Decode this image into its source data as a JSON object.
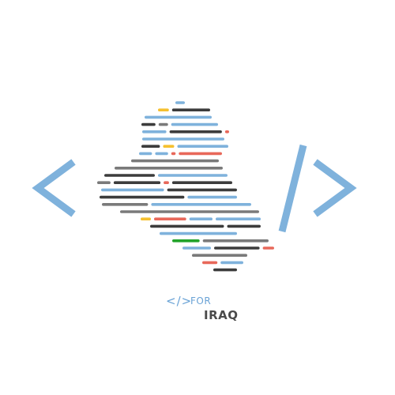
{
  "brand": {
    "code_glyph": "</>",
    "for_text": "FOR",
    "name_text": "IRAQ"
  },
  "icons": {
    "left_bracket": "angle-bracket-left-icon",
    "slash": "forward-slash-icon",
    "right_bracket": "angle-bracket-right-icon"
  },
  "colors": {
    "blue": "#7fb2dc",
    "dark": "#3c3c3c",
    "gray": "#7a7a7a",
    "yellow": "#f5c030",
    "red": "#e8685a",
    "green": "#22a32a",
    "bracket": "#7fb2dc"
  },
  "code_lines": [
    [
      [
        "blue",
        0.2
      ]
    ],
    [
      [
        "yellow",
        0.1
      ],
      [
        "dark",
        0.35
      ]
    ],
    [
      [
        "blue",
        0.55
      ]
    ],
    [
      [
        "dark",
        0.15
      ],
      [
        "gray",
        0.1
      ],
      [
        "blue",
        0.5
      ]
    ],
    [
      [
        "blue",
        0.3
      ],
      [
        "dark",
        0.65
      ],
      [
        "red",
        0.05
      ]
    ],
    [
      [
        "blue",
        0.85
      ]
    ],
    [
      [
        "dark",
        0.2
      ],
      [
        "yellow",
        0.12
      ],
      [
        "blue",
        0.55
      ]
    ],
    [
      [
        "blue",
        0.15
      ],
      [
        "blue",
        0.15
      ],
      [
        "red",
        0.05
      ],
      [
        "red",
        0.5
      ]
    ],
    [
      [
        "gray",
        0.9
      ]
    ],
    [
      [
        "gray",
        0.95
      ]
    ],
    [
      [
        "dark",
        0.4
      ],
      [
        "blue",
        0.55
      ]
    ],
    [
      [
        "gray",
        0.1
      ],
      [
        "dark",
        0.35
      ],
      [
        "red",
        0.04
      ],
      [
        "dark",
        0.45
      ]
    ],
    [
      [
        "blue",
        0.45
      ],
      [
        "dark",
        0.5
      ]
    ],
    [
      [
        "dark",
        0.6
      ],
      [
        "blue",
        0.35
      ]
    ],
    [
      [
        "gray",
        0.3
      ],
      [
        "blue",
        0.65
      ]
    ],
    [
      [
        "gray",
        0.95
      ]
    ],
    [
      [
        "yellow",
        0.08
      ],
      [
        "red",
        0.25
      ],
      [
        "blue",
        0.18
      ],
      [
        "blue",
        0.35
      ]
    ],
    [
      [
        "dark",
        0.55
      ],
      [
        "dark",
        0.25
      ]
    ],
    [
      [
        "blue",
        0.7
      ]
    ],
    [
      [
        "green",
        0.25
      ],
      [
        "gray",
        0.6
      ]
    ],
    [
      [
        "blue",
        0.25
      ],
      [
        "dark",
        0.4
      ],
      [
        "red",
        0.1
      ]
    ],
    [
      [
        "gray",
        0.55
      ]
    ],
    [
      [
        "red",
        0.3
      ],
      [
        "blue",
        0.45
      ]
    ],
    [
      [
        "dark",
        0.6
      ]
    ]
  ]
}
